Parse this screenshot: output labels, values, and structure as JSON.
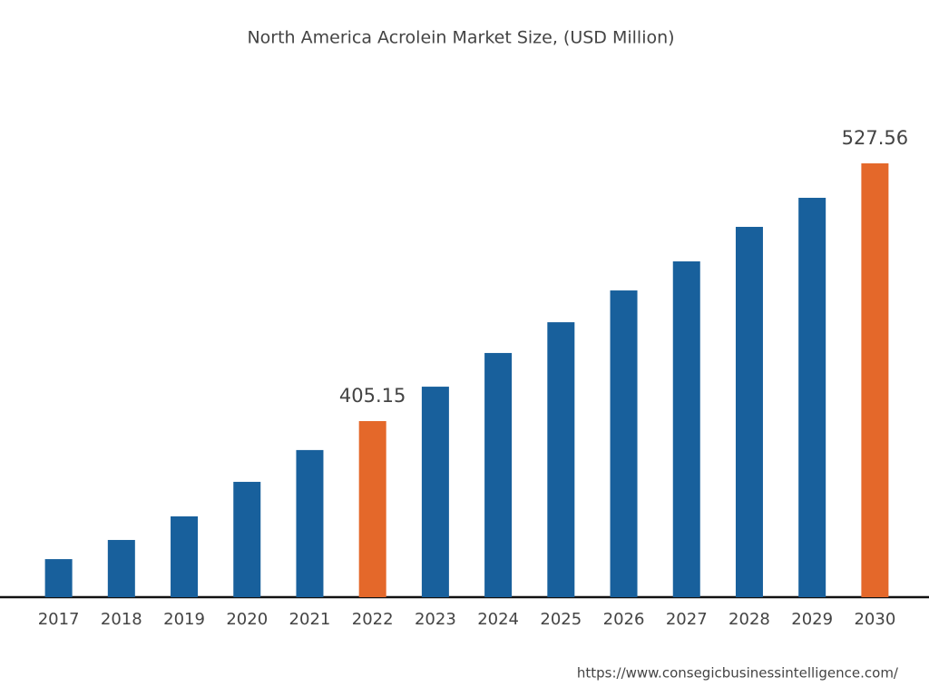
{
  "chart_data": {
    "type": "bar",
    "title": "North America Acrolein Market Size, (USD Million)",
    "categories": [
      "2017",
      "2018",
      "2019",
      "2020",
      "2021",
      "2022",
      "2023",
      "2024",
      "2025",
      "2026",
      "2027",
      "2028",
      "2029",
      "2030"
    ],
    "values": [
      339.6,
      348.7,
      359.9,
      376.3,
      391.4,
      405.15,
      421.5,
      437.5,
      452.1,
      467.2,
      481.0,
      497.4,
      511.2,
      527.56
    ],
    "value_labels": [
      null,
      null,
      null,
      null,
      null,
      "405.15",
      null,
      null,
      null,
      null,
      null,
      null,
      null,
      "527.56"
    ],
    "colors": [
      "#18609c",
      "#18609c",
      "#18609c",
      "#18609c",
      "#18609c",
      "#e4682a",
      "#18609c",
      "#18609c",
      "#18609c",
      "#18609c",
      "#18609c",
      "#18609c",
      "#18609c",
      "#e4682a"
    ],
    "ylim": [
      321.53,
      527.56
    ],
    "source": "https://www.consegicbusinessintelligence.com/"
  }
}
